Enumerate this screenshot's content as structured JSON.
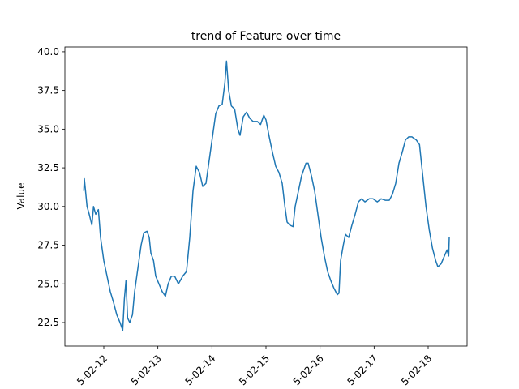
{
  "chart_data": {
    "type": "line",
    "title": "trend of Feature over time",
    "ylabel": "Value",
    "grid": false,
    "xlim": [
      11.28,
      18.72
    ],
    "ylim": [
      20.98,
      40.31
    ],
    "xticks": [
      {
        "value": 12,
        "label": "5-02-12"
      },
      {
        "value": 13,
        "label": "5-02-13"
      },
      {
        "value": 14,
        "label": "5-02-14"
      },
      {
        "value": 15,
        "label": "5-02-15"
      },
      {
        "value": 16,
        "label": "5-02-16"
      },
      {
        "value": 17,
        "label": "5-02-17"
      },
      {
        "value": 18,
        "label": "5-02-18"
      }
    ],
    "yticks": [
      {
        "value": 22.5,
        "label": "22.5"
      },
      {
        "value": 25,
        "label": "25.0"
      },
      {
        "value": 27.5,
        "label": "27.5"
      },
      {
        "value": 30,
        "label": "30.0"
      },
      {
        "value": 32.5,
        "label": "32.5"
      },
      {
        "value": 35,
        "label": "35.0"
      },
      {
        "value": 37.5,
        "label": "37.5"
      },
      {
        "value": 40,
        "label": "40.0"
      }
    ],
    "x": [
      11.63,
      11.64,
      11.69,
      11.73,
      11.78,
      11.81,
      11.85,
      11.9,
      11.94,
      12.0,
      12.06,
      12.12,
      12.18,
      12.24,
      12.3,
      12.35,
      12.38,
      12.41,
      12.44,
      12.48,
      12.53,
      12.57,
      12.63,
      12.69,
      12.74,
      12.8,
      12.84,
      12.87,
      12.92,
      12.96,
      13.02,
      13.08,
      13.14,
      13.19,
      13.25,
      13.31,
      13.38,
      13.46,
      13.53,
      13.59,
      13.65,
      13.71,
      13.77,
      13.83,
      13.89,
      13.95,
      14.01,
      14.07,
      14.13,
      14.19,
      14.24,
      14.27,
      14.31,
      14.36,
      14.42,
      14.48,
      14.52,
      14.58,
      14.64,
      14.7,
      14.76,
      14.84,
      14.9,
      14.96,
      15.0,
      15.06,
      15.12,
      15.18,
      15.24,
      15.3,
      15.35,
      15.39,
      15.44,
      15.5,
      15.54,
      15.6,
      15.66,
      15.74,
      15.78,
      15.84,
      15.9,
      15.96,
      16.02,
      16.08,
      16.14,
      16.2,
      16.26,
      16.32,
      16.35,
      16.38,
      16.43,
      16.47,
      16.53,
      16.59,
      16.65,
      16.71,
      16.77,
      16.83,
      16.91,
      16.98,
      17.06,
      17.13,
      17.21,
      17.28,
      17.34,
      17.4,
      17.46,
      17.52,
      17.58,
      17.64,
      17.7,
      17.78,
      17.84,
      17.9,
      17.96,
      18.02,
      18.08,
      18.14,
      18.18,
      18.24,
      18.3,
      18.35,
      18.38,
      18.39
    ],
    "series": [
      {
        "color": "#1f77b4",
        "values": [
          31.0,
          31.8,
          30.0,
          29.5,
          28.8,
          30.0,
          29.5,
          29.8,
          28.0,
          26.5,
          25.5,
          24.5,
          23.8,
          23.0,
          22.5,
          22.0,
          24.0,
          25.2,
          22.8,
          22.5,
          23.0,
          24.5,
          26.0,
          27.5,
          28.3,
          28.4,
          28.0,
          27.0,
          26.5,
          25.5,
          25.0,
          24.5,
          24.2,
          25.0,
          25.5,
          25.5,
          25.0,
          25.5,
          25.8,
          28.0,
          31.0,
          32.6,
          32.2,
          31.3,
          31.5,
          33.0,
          34.5,
          36.0,
          36.5,
          36.6,
          38.0,
          39.4,
          37.5,
          36.5,
          36.3,
          35.0,
          34.6,
          35.8,
          36.1,
          35.7,
          35.5,
          35.5,
          35.3,
          35.9,
          35.6,
          34.5,
          33.5,
          32.6,
          32.2,
          31.5,
          30.0,
          29.0,
          28.8,
          28.7,
          30.0,
          31.0,
          32.0,
          32.8,
          32.8,
          32.0,
          31.0,
          29.5,
          28.0,
          26.8,
          25.8,
          25.2,
          24.7,
          24.3,
          24.4,
          26.5,
          27.5,
          28.2,
          28.0,
          28.8,
          29.5,
          30.3,
          30.5,
          30.3,
          30.5,
          30.5,
          30.3,
          30.5,
          30.4,
          30.4,
          30.8,
          31.5,
          32.8,
          33.5,
          34.3,
          34.5,
          34.5,
          34.3,
          34.0,
          32.0,
          30.0,
          28.5,
          27.3,
          26.5,
          26.1,
          26.3,
          26.8,
          27.2,
          26.8,
          28.0
        ]
      }
    ]
  }
}
